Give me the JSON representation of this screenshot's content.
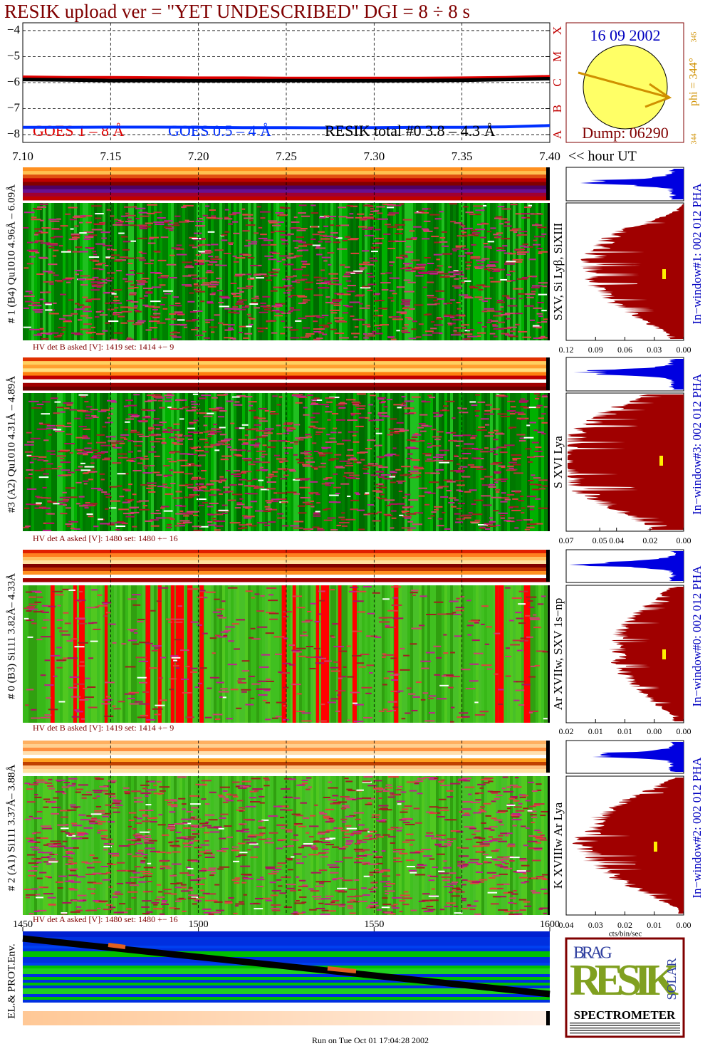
{
  "header": {
    "title": "RESIK upload ver = \"YET UNDESCRIBED\"  DGI =   8 ÷   8 s"
  },
  "chart_data": {
    "type": "line",
    "x": [
      7.1,
      7.125,
      7.15,
      7.175,
      7.2,
      7.225,
      7.25,
      7.275,
      7.3,
      7.325,
      7.35,
      7.375,
      7.4
    ],
    "series": [
      {
        "name": "GOES 1 – 8 Å",
        "color": "#e00000",
        "values": [
          -5.78,
          -5.8,
          -5.8,
          -5.81,
          -5.82,
          -5.82,
          -5.83,
          -5.83,
          -5.83,
          -5.83,
          -5.82,
          -5.8,
          -5.76
        ]
      },
      {
        "name": "GOES 0.5 – 4 Å",
        "color": "#0030ff",
        "values": [
          -7.72,
          -7.72,
          -7.71,
          -7.71,
          -7.72,
          -7.73,
          -7.73,
          -7.74,
          -7.73,
          -7.72,
          -7.72,
          -7.7,
          -7.65
        ]
      },
      {
        "name": "RESIK total #0  3.8  –  4.3 Å",
        "color": "#000000",
        "values": [
          -5.88,
          -5.9,
          -5.92,
          -5.92,
          -5.93,
          -5.93,
          -5.92,
          -5.93,
          -5.93,
          -5.92,
          -5.91,
          -5.88,
          -5.85
        ]
      }
    ],
    "xlim": [
      7.1,
      7.4
    ],
    "xticks": [
      {
        "value": 7.1,
        "label": "7.10"
      },
      7.15,
      {
        "value": 7.2,
        "label": "7.20"
      },
      7.25,
      {
        "value": 7.3,
        "label": "7.30"
      },
      7.35,
      {
        "value": 7.4,
        "label": "7.40"
      }
    ],
    "xlabel": "<< hour UT",
    "ylim": [
      -8.3,
      -3.7
    ],
    "yticks": [
      {
        "value": -4,
        "label": "−4"
      },
      {
        "value": -5,
        "label": "−5"
      },
      {
        "value": -6,
        "label": "−6"
      },
      {
        "value": -7,
        "label": "−7"
      },
      {
        "value": -8,
        "label": "−8"
      }
    ],
    "class_ticks": [
      {
        "value": -8,
        "label": "A"
      },
      {
        "value": -7,
        "label": "B"
      },
      {
        "value": -6,
        "label": "C"
      },
      {
        "value": -5,
        "label": "M"
      },
      {
        "value": -4,
        "label": "X"
      }
    ],
    "grid": true
  },
  "sun": {
    "date": "16 09 2002",
    "dump": "Dump: 06290",
    "phi": "phi = 344°",
    "phi_top": "345",
    "phi_bottom": "344"
  },
  "panels": [
    {
      "label": "# 1 (B4) Qu1010 4.96Å – 6.09Å",
      "lines": "SXV, Si Lyβ, SiXIII",
      "window": "In−window#1:  002 012 PHA",
      "hv": "HV det B asked [V]:  1419 set:  1414  +−    9",
      "hist_xlim": [
        0.12,
        0
      ],
      "hist_xticks": [
        0.12,
        0.09,
        0.06,
        0.03,
        {
          "value": 0,
          "label": "0.00"
        }
      ]
    },
    {
      "label": "#3 (A2) Qu1010  4.31Å – 4.89Å",
      "lines": "S XVI Lya",
      "window": "In−window#3:  002 012 PHA",
      "hv": "HV det A asked [V]:  1480 set:  1480  +−    16",
      "hist_xlim": [
        0.07,
        0
      ],
      "hist_xticks": [
        0.07,
        0.05,
        0.04,
        0.02,
        {
          "value": 0,
          "label": "0.00"
        }
      ]
    },
    {
      "label": "# 0 (B3) Si111  3.82Å– 4.33Å",
      "lines": "Ar XVIIw,  SXV 1s−np",
      "window": "In−window#0:  002 012 PHA",
      "hv": "HV det B asked [V]:  1419 set:  1414  +−    9",
      "hist_xlim": [
        0.02,
        0
      ],
      "hist_xticks": [
        0.02,
        {
          "value": 0.015,
          "label": "0.01"
        },
        0.01,
        {
          "value": 0.005,
          "label": "0.00"
        },
        {
          "value": 0,
          "label": "0.00"
        }
      ]
    },
    {
      "label": "# 2 (A1) Si111  3.37Å– 3.88Å",
      "lines": "K XVIIIw   Ar Lya",
      "window": "In−window#2:  002 012 PHA",
      "hv": "HV det A asked [V]:  1480 set:  1480  +−    16",
      "hist_xlim": [
        0.04,
        0
      ],
      "hist_xticks": [
        0.04,
        0.03,
        0.02,
        0.01,
        {
          "value": 0,
          "label": "0.00"
        }
      ]
    }
  ],
  "hist_unit": "cts/bin/sec",
  "env": {
    "label": "EL.& PROT.Env.",
    "xlim": [
      1450,
      1600
    ],
    "xticks": [
      1450,
      1500,
      1550,
      1600
    ]
  },
  "logo": {
    "prefix": "BRAG",
    "name": "RESIK",
    "side": "SOLAR",
    "caption": "SPECTROMETER"
  },
  "footer": "Run on Tue Oct 01 17:04:28 2002"
}
